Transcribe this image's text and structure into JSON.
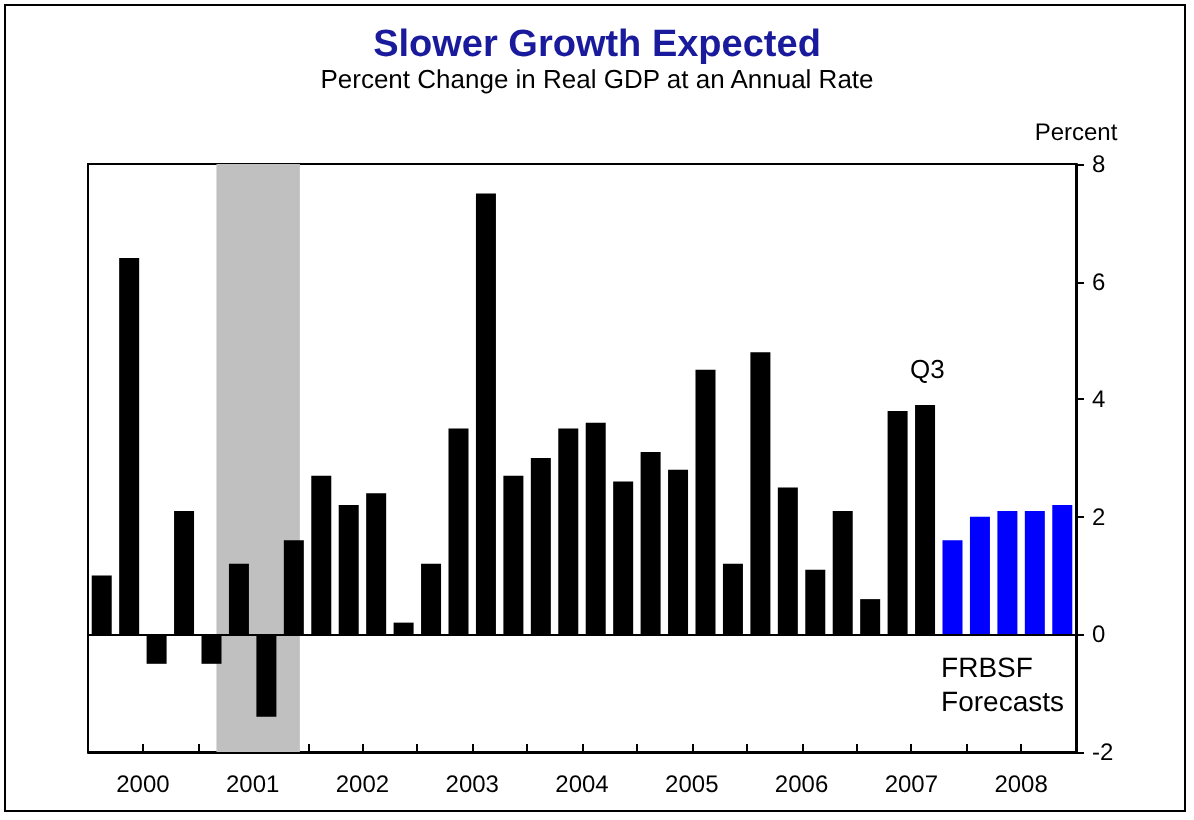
{
  "chart_data": {
    "type": "bar",
    "title": "Slower Growth Expected",
    "subtitle": "Percent Change in Real GDP at an Annual Rate",
    "ylabel": "Percent",
    "x": [
      1999.625,
      1999.875,
      2000.125,
      2000.375,
      2000.625,
      2000.875,
      2001.125,
      2001.375,
      2001.625,
      2001.875,
      2002.125,
      2002.375,
      2002.625,
      2002.875,
      2003.125,
      2003.375,
      2003.625,
      2003.875,
      2004.125,
      2004.375,
      2004.625,
      2004.875,
      2005.125,
      2005.375,
      2005.625,
      2005.875,
      2006.125,
      2006.375,
      2006.625,
      2006.875,
      2007.125,
      2007.375,
      2007.625,
      2007.875,
      2008.125,
      2008.375
    ],
    "values": [
      1.0,
      6.4,
      -0.5,
      2.1,
      -0.5,
      1.2,
      -1.4,
      1.6,
      2.7,
      2.2,
      2.4,
      0.2,
      1.2,
      3.5,
      7.5,
      2.7,
      3.0,
      3.5,
      3.6,
      2.6,
      3.1,
      2.8,
      4.5,
      1.2,
      4.8,
      2.5,
      1.1,
      2.1,
      0.6,
      3.8,
      3.9,
      1.6,
      2.0,
      2.1,
      2.1,
      2.2
    ],
    "colors": [
      "#000000",
      "#000000",
      "#000000",
      "#000000",
      "#000000",
      "#000000",
      "#000000",
      "#000000",
      "#000000",
      "#000000",
      "#000000",
      "#000000",
      "#000000",
      "#000000",
      "#000000",
      "#000000",
      "#000000",
      "#000000",
      "#000000",
      "#000000",
      "#000000",
      "#000000",
      "#000000",
      "#000000",
      "#000000",
      "#000000",
      "#000000",
      "#000000",
      "#000000",
      "#000000",
      "#000000",
      "#0000ff",
      "#0000ff",
      "#0000ff",
      "#0000ff",
      "#0000ff"
    ],
    "xlim": [
      1999.5,
      2008.5
    ],
    "xticks": [
      2000,
      2001,
      2002,
      2003,
      2004,
      2005,
      2006,
      2007,
      2008,
      {
        "value": 2000.5,
        "label": null
      },
      {
        "value": 2001.5,
        "label": null
      },
      {
        "value": 2002.5,
        "label": null
      },
      {
        "value": 2003.5,
        "label": null
      },
      {
        "value": 2004.5,
        "label": null
      },
      {
        "value": 2005.5,
        "label": null
      },
      {
        "value": 2006.5,
        "label": null
      },
      {
        "value": 2007.5,
        "label": null
      }
    ],
    "ylim": [
      -2,
      8
    ],
    "yticks": [
      -2,
      0,
      2,
      4,
      6,
      8
    ],
    "ref_lines": [
      {
        "axis": "y",
        "value": 0,
        "color": "#000000"
      }
    ],
    "bands": [
      {
        "axis": "x",
        "from": 2000.67,
        "to": 2001.43,
        "color": "#c0c0c0"
      }
    ],
    "annotations": [
      "Q3",
      "FRBSF\nForecasts"
    ],
    "grid": false
  }
}
